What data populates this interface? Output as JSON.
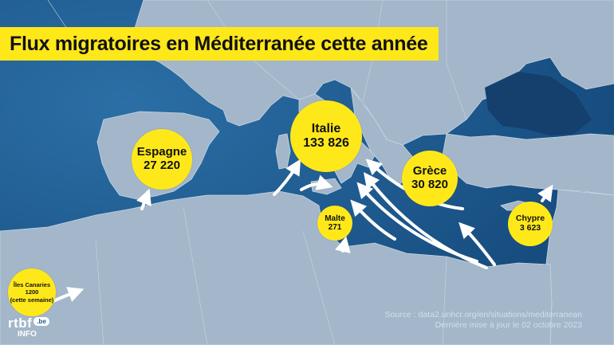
{
  "title": "Flux migratoires en Méditerranée cette année",
  "countries": [
    {
      "name": "Espagne",
      "value": "27 220"
    },
    {
      "name": "Italie",
      "value": "133 826"
    },
    {
      "name": "Grèce",
      "value": "30 820"
    },
    {
      "name": "Malte",
      "value": "271"
    },
    {
      "name": "Chypre",
      "value": "3 623"
    },
    {
      "name": "Îles Canaries",
      "value": "1200",
      "note": "(cette semaine)"
    }
  ],
  "source": {
    "line1": "Source : data2.unhcr.org/en/situations/mediterranean",
    "line2": "Dernière mise à jour le 02 octobre 2023"
  },
  "logo": {
    "main": "rtbf",
    "badge": ".be",
    "sub": "INFO"
  },
  "colors": {
    "sea": "#1a5a8c",
    "land": "#9eb3c8",
    "highlight": "#ffe81a"
  }
}
